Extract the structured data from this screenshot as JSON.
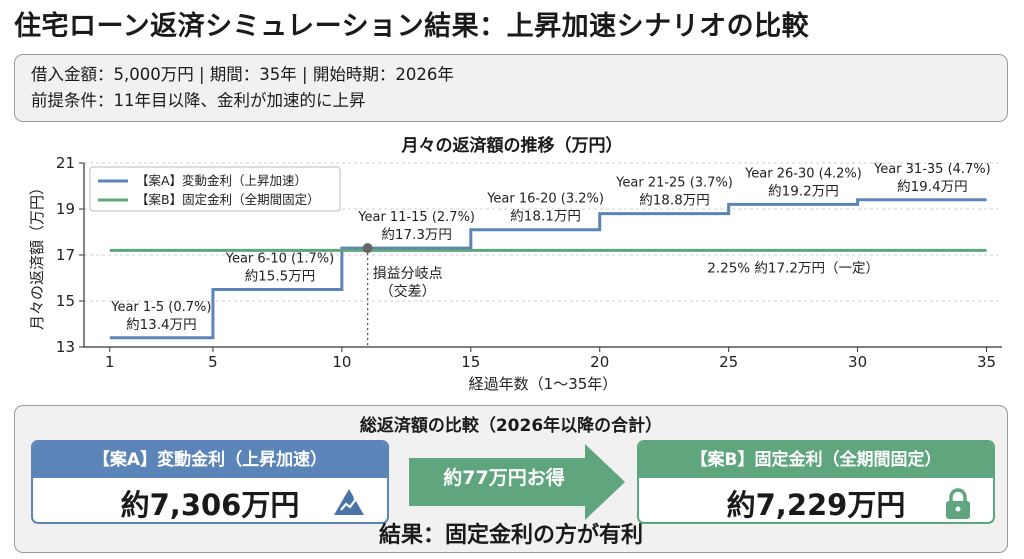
{
  "title": "住宅ローン返済シミュレーション結果：上昇加速シナリオの比較",
  "info": {
    "line1": "借入金額：5,000万円 | 期間：35年 | 開始時期：2026年",
    "line2": "前提条件：11年目以降、金利が加速的に上昇"
  },
  "chart_data": {
    "type": "line",
    "title": "月々の返済額の推移（万円）",
    "xlabel": "経過年数（1〜35年）",
    "ylabel": "月々の返済額（万円）",
    "xlim": [
      1,
      35
    ],
    "ylim": [
      13,
      21
    ],
    "xticks": [
      1,
      5,
      10,
      15,
      20,
      25,
      30,
      35
    ],
    "yticks": [
      13,
      15,
      17,
      19,
      21
    ],
    "grid": true,
    "legend_position": "top-left",
    "series": [
      {
        "name": "【案A】変動金利（上昇加速）",
        "color": "#5b85b8",
        "style": "step",
        "points": [
          [
            1,
            13.4
          ],
          [
            5,
            13.4
          ],
          [
            5,
            15.5
          ],
          [
            10,
            15.5
          ],
          [
            10,
            17.3
          ],
          [
            15,
            17.3
          ],
          [
            15,
            18.1
          ],
          [
            20,
            18.1
          ],
          [
            20,
            18.8
          ],
          [
            25,
            18.8
          ],
          [
            25,
            19.2
          ],
          [
            30,
            19.2
          ],
          [
            30,
            19.4
          ],
          [
            35,
            19.4
          ]
        ]
      },
      {
        "name": "【案B】固定金利（全期間固定）",
        "color": "#5fa57e",
        "style": "line",
        "points": [
          [
            1,
            17.2
          ],
          [
            35,
            17.2
          ]
        ]
      }
    ],
    "annotations": [
      {
        "x": 3.0,
        "y": 13.4,
        "line1": "Year 1-5 (0.7%)",
        "line2": "約13.4万円"
      },
      {
        "x": 7.6,
        "y": 15.5,
        "line1": "Year 6-10 (1.7%)",
        "line2": "約15.5万円"
      },
      {
        "x": 12.9,
        "y": 17.3,
        "line1": "Year 11-15 (2.7%)",
        "line2": "約17.3万円"
      },
      {
        "x": 17.9,
        "y": 18.1,
        "line1": "Year 16-20 (3.2%)",
        "line2": "約18.1万円"
      },
      {
        "x": 22.9,
        "y": 18.8,
        "line1": "Year 21-25 (3.7%)",
        "line2": "約18.8万円"
      },
      {
        "x": 27.9,
        "y": 19.2,
        "line1": "Year 26-30 (4.2%)",
        "line2": "約19.2万円"
      },
      {
        "x": 32.9,
        "y": 19.4,
        "line1": "Year 31-35 (4.7%)",
        "line2": "約19.4万円"
      }
    ],
    "fixed_label": "2.25% 約17.2万円（一定）",
    "breakeven": {
      "x": 11,
      "y": 17.3,
      "line1": "損益分岐点",
      "line2": "（交差）"
    }
  },
  "summary": {
    "title": "総返済額の比較（2026年以降の合計）",
    "plan_a": {
      "label": "【案A】変動金利（上昇加速）",
      "amount": "約7,306万円",
      "color": "#5b85b8",
      "icon": "chart-up-icon"
    },
    "plan_b": {
      "label": "【案B】固定金利（全期間固定）",
      "amount": "約7,229万円",
      "color": "#5fa57e",
      "icon": "lock-icon"
    },
    "diff": "約77万円お得",
    "conclusion": "結果：固定金利の方が有利"
  }
}
